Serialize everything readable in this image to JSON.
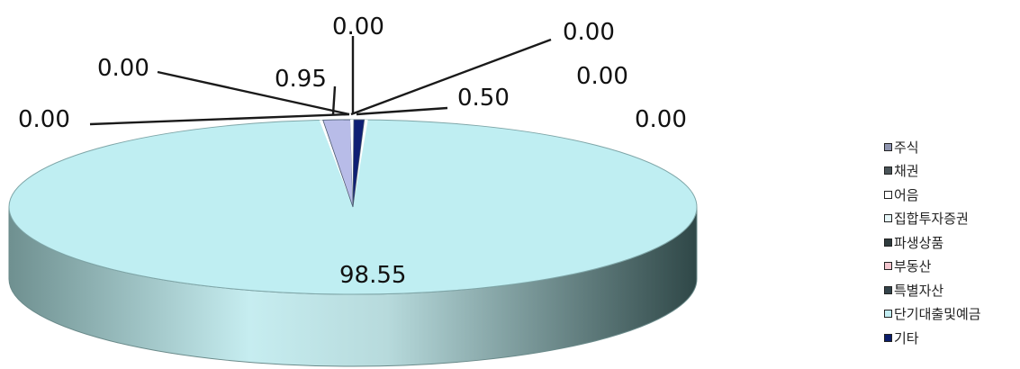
{
  "chart_data": {
    "type": "pie",
    "title": "",
    "style": "3d-exploded-pie",
    "categories": [
      "주식",
      "채권",
      "어음",
      "집합투자증권",
      "파생상품",
      "부동산",
      "특별자산",
      "단기대출및예금",
      "기타"
    ],
    "values": [
      0.0,
      0.0,
      0.0,
      0.0,
      0.0,
      0.0,
      0.95,
      98.55,
      0.5
    ],
    "value_labels": [
      "0.00",
      "0.00",
      "0.00",
      "0.00",
      "0.00",
      "0.00",
      "0.95",
      "98.55",
      "0.50"
    ],
    "colors": [
      "#8f95b0",
      "#4a5458",
      "#ffffff",
      "#e6f6f8",
      "#2f3b3d",
      "#f3c6cf",
      "#33434a",
      "#c3edf2",
      "#0b1d6b"
    ],
    "slice_colors": {
      "특별자산": "#b8bce8",
      "단기대출및예금": "#bfeef2",
      "기타": "#0f1f74",
      "side_dark": "#3f5a5a",
      "side_light": "#c6edf0"
    },
    "legend_position": "right"
  }
}
